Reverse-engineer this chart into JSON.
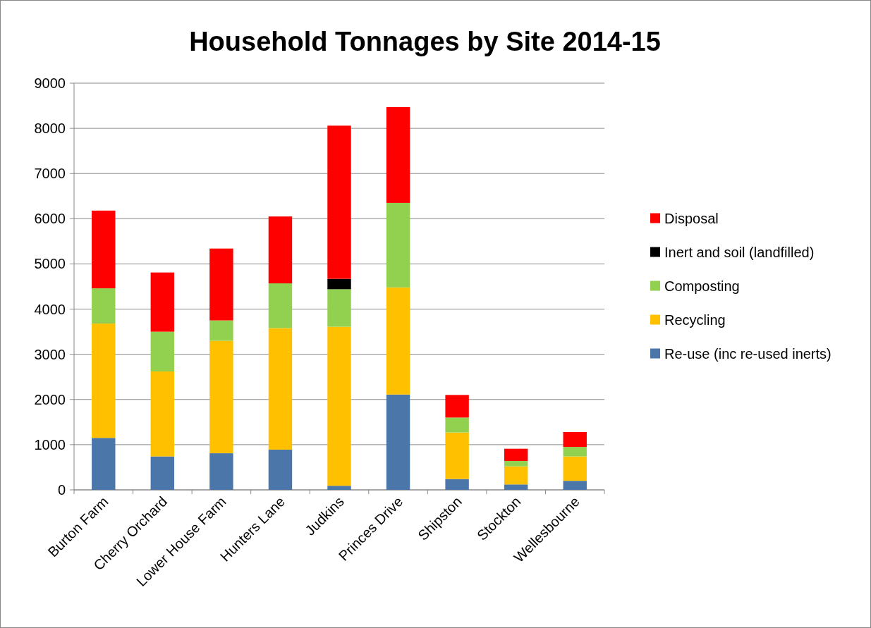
{
  "chart_data": {
    "type": "bar",
    "title": "Household Tonnages by Site 2014-15",
    "categories": [
      "Burton Farm",
      "Cherry Orchard",
      "Lower House Farm",
      "Hunters Lane",
      "Judkins",
      "Princes Drive",
      "Shipston",
      "Stockton",
      "Wellesbourne"
    ],
    "stacked": true,
    "series": [
      {
        "name": "Re-use (inc re-used inerts)",
        "color": "#4a76aa",
        "values": [
          1150,
          740,
          810,
          890,
          90,
          2110,
          240,
          120,
          200
        ]
      },
      {
        "name": "Recycling",
        "color": "#ffc000",
        "values": [
          2530,
          1880,
          2490,
          2690,
          3520,
          2370,
          1030,
          400,
          540
        ]
      },
      {
        "name": "Composting",
        "color": "#92d050",
        "values": [
          780,
          880,
          450,
          990,
          830,
          1870,
          330,
          120,
          210
        ]
      },
      {
        "name": "Inert and soil (landfilled)",
        "color": "#000000",
        "values": [
          0,
          0,
          0,
          0,
          230,
          0,
          0,
          0,
          0
        ]
      },
      {
        "name": "Disposal",
        "color": "#ff0000",
        "values": [
          1720,
          1310,
          1590,
          1480,
          3390,
          2120,
          500,
          270,
          330
        ]
      }
    ],
    "ylim": [
      0,
      9000
    ],
    "yticks": [
      0,
      1000,
      2000,
      3000,
      4000,
      5000,
      6000,
      7000,
      8000,
      9000
    ],
    "grid": "y",
    "legend": "right"
  }
}
